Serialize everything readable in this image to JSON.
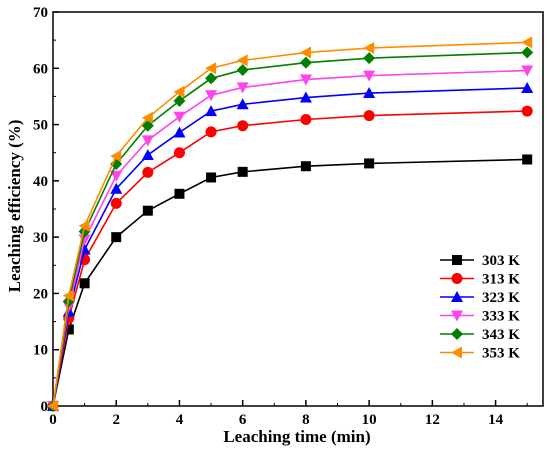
{
  "chart_data": {
    "type": "line",
    "title": "",
    "xlabel": "Leaching time (min)",
    "ylabel": "Leaching efficiency (%)",
    "xlim": [
      0,
      15.5
    ],
    "ylim": [
      0,
      70
    ],
    "xticks": [
      0,
      2,
      4,
      6,
      8,
      10,
      12,
      14
    ],
    "yticks": [
      0,
      10,
      20,
      30,
      40,
      50,
      60,
      70
    ],
    "grid": false,
    "legend_position": "bottom-right",
    "x": [
      0,
      0.5,
      1,
      2,
      3,
      4,
      5,
      6,
      8,
      10,
      15
    ],
    "series": [
      {
        "name": "303 K",
        "color": "#000000",
        "marker": "square",
        "values": [
          0,
          13.6,
          21.8,
          30.0,
          34.7,
          37.7,
          40.6,
          41.6,
          42.6,
          43.1,
          43.8
        ]
      },
      {
        "name": "313 K",
        "color": "#ff0000",
        "marker": "circle",
        "values": [
          0,
          15.6,
          26.0,
          36.0,
          41.5,
          45.0,
          48.7,
          49.8,
          50.9,
          51.6,
          52.4
        ]
      },
      {
        "name": "323 K",
        "color": "#0000ff",
        "marker": "triangle-up",
        "values": [
          0,
          16.8,
          27.8,
          38.6,
          44.6,
          48.6,
          52.4,
          53.6,
          54.8,
          55.6,
          56.5
        ]
      },
      {
        "name": "333 K",
        "color": "#ff44ee",
        "marker": "triangle-down",
        "values": [
          0,
          17.7,
          29.6,
          40.9,
          47.2,
          51.4,
          55.2,
          56.6,
          58.0,
          58.7,
          59.6
        ]
      },
      {
        "name": "343 K",
        "color": "#008000",
        "marker": "diamond",
        "values": [
          0,
          18.6,
          31.0,
          43.0,
          49.8,
          54.2,
          58.2,
          59.7,
          61.0,
          61.8,
          62.8
        ]
      },
      {
        "name": "353 K",
        "color": "#ff8c00",
        "marker": "triangle-left",
        "values": [
          0,
          19.6,
          32.0,
          44.4,
          51.2,
          55.8,
          60.0,
          61.4,
          62.8,
          63.6,
          64.6
        ]
      }
    ]
  }
}
